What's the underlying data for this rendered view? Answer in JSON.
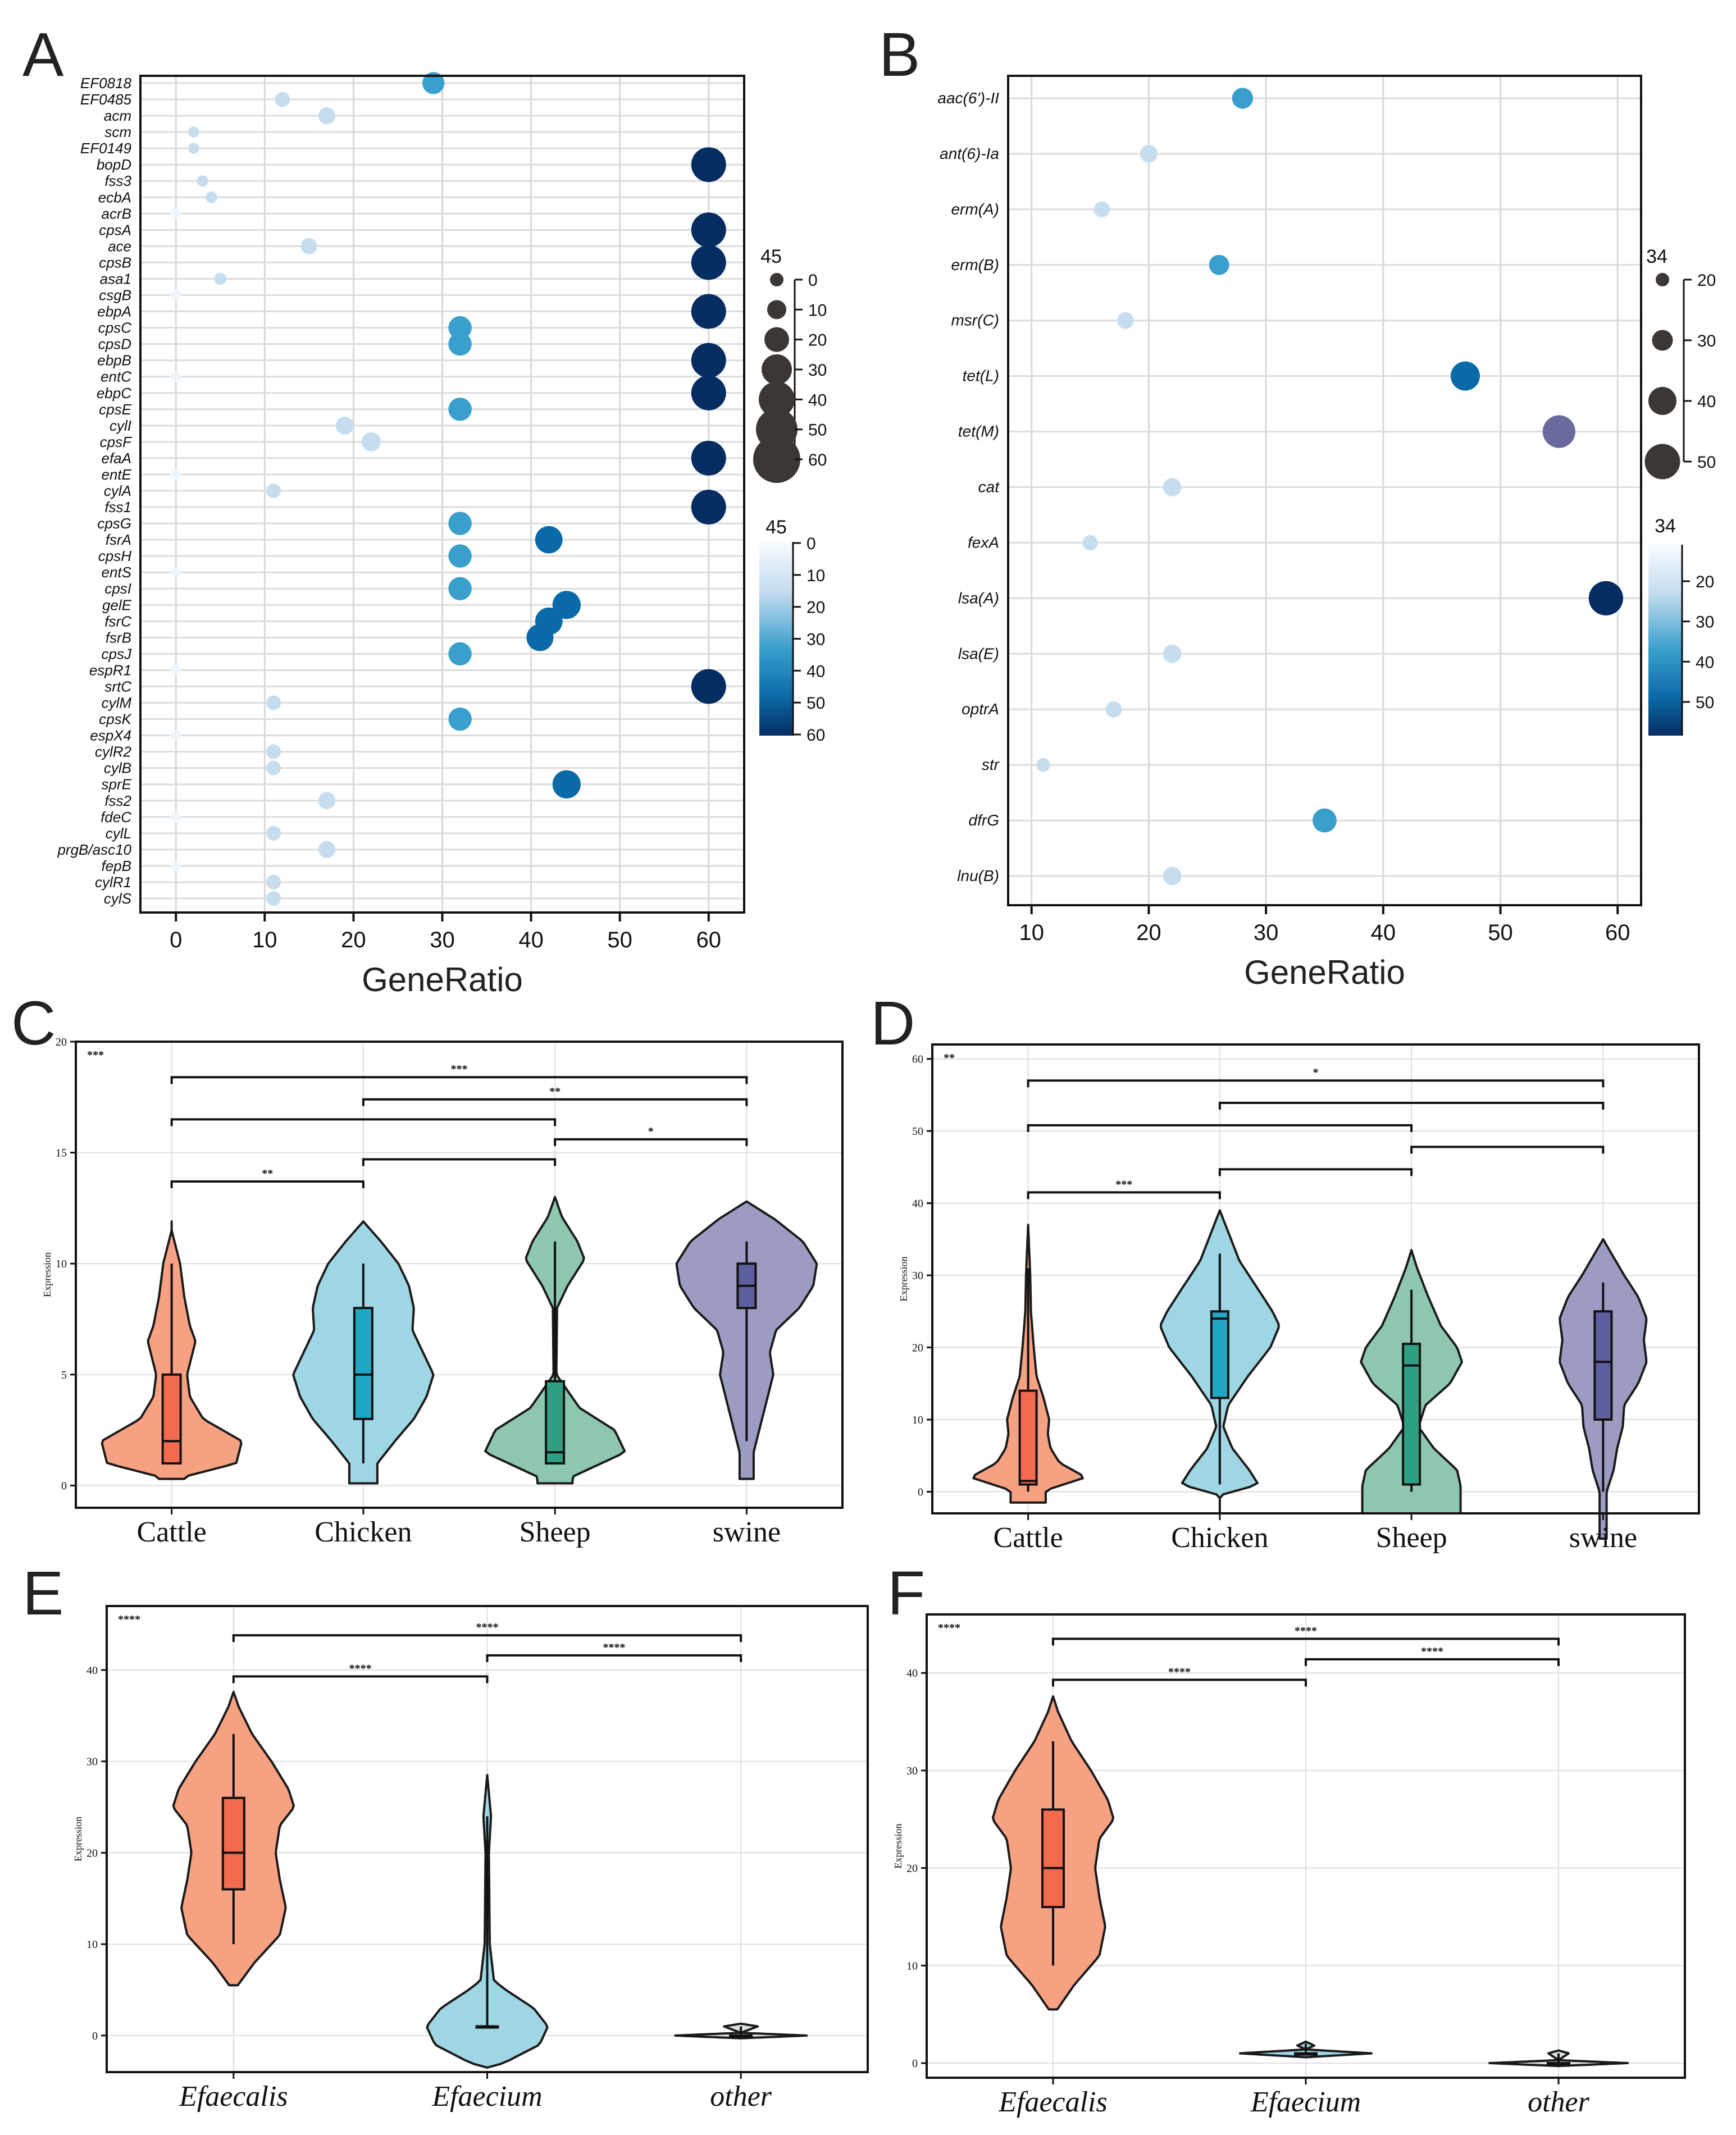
{
  "panels": {
    "A": "A",
    "B": "B",
    "C": "C",
    "D": "D",
    "E": "E",
    "F": "F"
  },
  "colors": {
    "lightest": "#eef5fb",
    "light": "#c6ddef",
    "mid": "#3a9fcd",
    "dark": "#0a6aa8",
    "darkest": "#062d62",
    "purple": "#6a6a9e",
    "cattle": "#f7a183",
    "chicken": "#9fd6e4",
    "sheep": "#8ec7b0",
    "swine": "#9c9cc2"
  },
  "chart_data": [
    {
      "panel": "A",
      "type": "scatter",
      "xlabel": "GeneRatio",
      "xticks": [
        0,
        10,
        20,
        30,
        40,
        50,
        60
      ],
      "xlim": [
        -4,
        64
      ],
      "genes": [
        "EF0818",
        "EF0485",
        "acm",
        "scm",
        "EF0149",
        "bopD",
        "fss3",
        "ecbA",
        "acrB",
        "cpsA",
        "ace",
        "cpsB",
        "asa1",
        "csgB",
        "ebpA",
        "cpsC",
        "cpsD",
        "ebpB",
        "entC",
        "ebpC",
        "cpsE",
        "cylI",
        "cpsF",
        "efaA",
        "entE",
        "cylA",
        "fss1",
        "cpsG",
        "fsrA",
        "cpsH",
        "entS",
        "cpsI",
        "gelE",
        "fsrC",
        "fsrB",
        "cpsJ",
        "espR1",
        "srtC",
        "cylM",
        "cpsK",
        "espX4",
        "cylR2",
        "cylB",
        "sprE",
        "fss2",
        "fdeC",
        "cylL",
        "prgB/asc10",
        "fepB",
        "cylR1",
        "cylS"
      ],
      "values": [
        29,
        12,
        17,
        2,
        2,
        60,
        3,
        4,
        0,
        60,
        15,
        60,
        5,
        0,
        60,
        32,
        32,
        60,
        0,
        60,
        32,
        19,
        22,
        60,
        0,
        11,
        60,
        32,
        42,
        32,
        0,
        32,
        44,
        42,
        41,
        32,
        0,
        60,
        11,
        32,
        0,
        11,
        11,
        44,
        17,
        0,
        11,
        17,
        0,
        11,
        11
      ],
      "size_legend": {
        "title": "45",
        "ticks": [
          "0",
          "10",
          "20",
          "30",
          "40",
          "50",
          "60"
        ]
      },
      "color_legend": {
        "title": "45",
        "ticks": [
          "0",
          "10",
          "20",
          "30",
          "40",
          "50",
          "60"
        ]
      }
    },
    {
      "panel": "B",
      "type": "scatter",
      "xlabel": "GeneRatio",
      "xticks": [
        10,
        20,
        30,
        40,
        50,
        60
      ],
      "xlim": [
        8,
        62
      ],
      "genes": [
        "aac(6')-II",
        "ant(6)-Ia",
        "erm(A)",
        "erm(B)",
        "msr(C)",
        "tet(L)",
        "tet(M)",
        "cat",
        "fexA",
        "lsa(A)",
        "lsa(E)",
        "optrA",
        "str",
        "dfrG",
        "lnu(B)"
      ],
      "values": [
        28,
        20,
        16,
        26,
        18,
        47,
        55,
        22,
        15,
        59,
        22,
        17,
        11,
        35,
        22
      ],
      "size_legend": {
        "title": "34",
        "ticks": [
          "20",
          "30",
          "40",
          "50"
        ]
      },
      "color_legend": {
        "title": "34",
        "ticks": [
          "20",
          "30",
          "40",
          "50"
        ]
      }
    },
    {
      "panel": "C",
      "type": "violin",
      "ylabel": "Expression",
      "categories": [
        "Cattle",
        "Chicken",
        "Sheep",
        "swine"
      ],
      "ylim": [
        -1,
        20
      ],
      "yticks": [
        0,
        5,
        10,
        15,
        20
      ],
      "overall": "***",
      "box": [
        {
          "q1": 1,
          "median": 2,
          "q3": 5,
          "min": 1,
          "max": 10
        },
        {
          "q1": 3,
          "median": 5,
          "q3": 8,
          "min": 1,
          "max": 10
        },
        {
          "q1": 1,
          "median": 1.5,
          "q3": 4.7,
          "min": 1,
          "max": 11
        },
        {
          "q1": 8,
          "median": 9,
          "q3": 10,
          "min": 2,
          "max": 11
        }
      ],
      "brackets": [
        {
          "from": 0,
          "to": 1,
          "y": 13.7,
          "label": "**"
        },
        {
          "from": 1,
          "to": 2,
          "y": 14.7,
          "label": ""
        },
        {
          "from": 2,
          "to": 3,
          "y": 15.6,
          "label": "*"
        },
        {
          "from": 0,
          "to": 2,
          "y": 16.5,
          "label": ""
        },
        {
          "from": 1,
          "to": 3,
          "y": 17.4,
          "label": "**"
        },
        {
          "from": 0,
          "to": 3,
          "y": 18.4,
          "label": "***"
        }
      ]
    },
    {
      "panel": "D",
      "type": "violin",
      "ylabel": "Expression",
      "categories": [
        "Cattle",
        "Chicken",
        "Sheep",
        "swine"
      ],
      "ylim": [
        -3,
        62
      ],
      "yticks": [
        0,
        10,
        20,
        30,
        40,
        50,
        60
      ],
      "overall": "**",
      "box": [
        {
          "q1": 1,
          "median": 1.5,
          "q3": 14,
          "min": 0,
          "max": 31
        },
        {
          "q1": 13,
          "median": 24,
          "q3": 25,
          "min": 1,
          "max": 33
        },
        {
          "q1": 1,
          "median": 17.5,
          "q3": 20.5,
          "min": 0,
          "max": 28
        },
        {
          "q1": 10,
          "median": 18,
          "q3": 25,
          "min": 0,
          "max": 29
        }
      ],
      "brackets": [
        {
          "from": 0,
          "to": 1,
          "y": 41.5,
          "label": "***"
        },
        {
          "from": 1,
          "to": 2,
          "y": 44.7,
          "label": ""
        },
        {
          "from": 2,
          "to": 3,
          "y": 47.8,
          "label": ""
        },
        {
          "from": 0,
          "to": 2,
          "y": 50.8,
          "label": ""
        },
        {
          "from": 1,
          "to": 3,
          "y": 53.9,
          "label": ""
        },
        {
          "from": 0,
          "to": 3,
          "y": 57,
          "label": "*"
        }
      ]
    },
    {
      "panel": "E",
      "type": "violin",
      "ylabel": "Expression",
      "categories": [
        "Efaecalis",
        "Efaecium",
        "other"
      ],
      "ylim": [
        -4,
        47
      ],
      "yticks": [
        0,
        10,
        20,
        30,
        40
      ],
      "overall": "****",
      "box": [
        {
          "q1": 16,
          "median": 20,
          "q3": 26,
          "min": 10,
          "max": 33
        },
        {
          "q1": 1,
          "median": 1,
          "q3": 1,
          "min": 1,
          "max": 24
        },
        {
          "q1": 0,
          "median": 0,
          "q3": 0,
          "min": 0,
          "max": 1
        }
      ],
      "brackets": [
        {
          "from": 0,
          "to": 1,
          "y": 39.3,
          "label": "****"
        },
        {
          "from": 1,
          "to": 2,
          "y": 41.6,
          "label": "****"
        },
        {
          "from": 0,
          "to": 2,
          "y": 43.8,
          "label": "****"
        }
      ]
    },
    {
      "panel": "F",
      "type": "violin",
      "ylabel": "Expression",
      "categories": [
        "Efaecalis",
        "Efaecium",
        "other"
      ],
      "ylim": [
        -1.5,
        46
      ],
      "yticks": [
        0,
        10,
        20,
        30,
        40
      ],
      "overall": "****",
      "box": [
        {
          "q1": 16,
          "median": 20,
          "q3": 26,
          "min": 10,
          "max": 33
        },
        {
          "q1": 1,
          "median": 1,
          "q3": 1,
          "min": 1,
          "max": 2
        },
        {
          "q1": 0,
          "median": 0,
          "q3": 0,
          "min": 0,
          "max": 1
        }
      ],
      "brackets": [
        {
          "from": 0,
          "to": 1,
          "y": 39.3,
          "label": "****"
        },
        {
          "from": 1,
          "to": 2,
          "y": 41.4,
          "label": "****"
        },
        {
          "from": 0,
          "to": 2,
          "y": 43.5,
          "label": "****"
        }
      ]
    }
  ]
}
